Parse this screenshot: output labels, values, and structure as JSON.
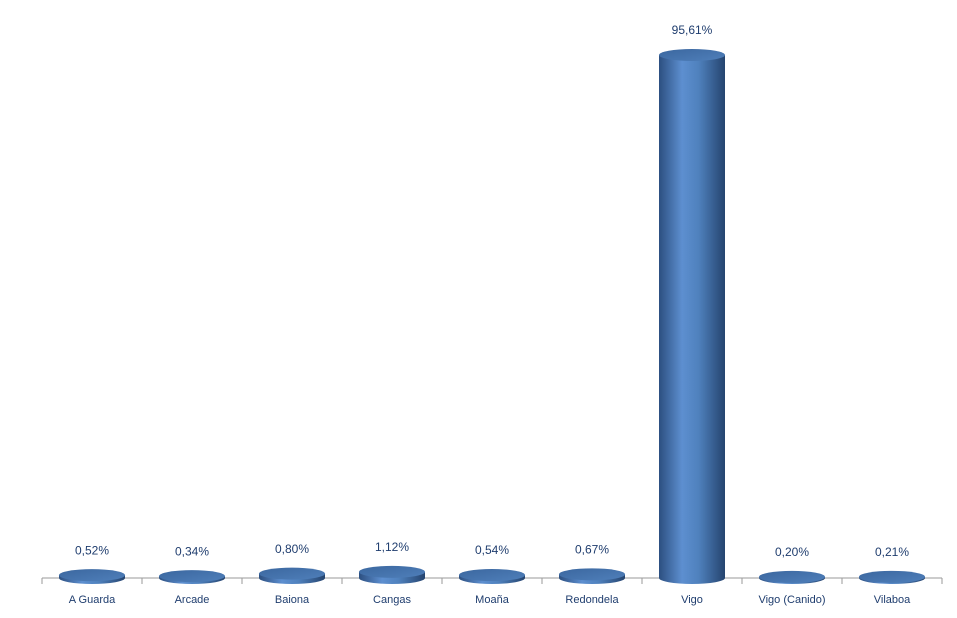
{
  "chart_data": {
    "type": "cylinder-bar",
    "categories": [
      "A Guarda",
      "Arcade",
      "Baiona",
      "Cangas",
      "Moaña",
      "Redondela",
      "Vigo",
      "Vigo (Canido)",
      "Vilaboa"
    ],
    "values": [
      0.52,
      0.34,
      0.8,
      1.12,
      0.54,
      0.67,
      95.61,
      0.2,
      0.21
    ],
    "value_labels": [
      "0,52%",
      "0,34%",
      "0,80%",
      "1,12%",
      "0,54%",
      "0,67%",
      "95,61%",
      "0,20%",
      "0,21%"
    ],
    "color": "#4f81bd",
    "ylim": [
      0,
      100
    ]
  }
}
